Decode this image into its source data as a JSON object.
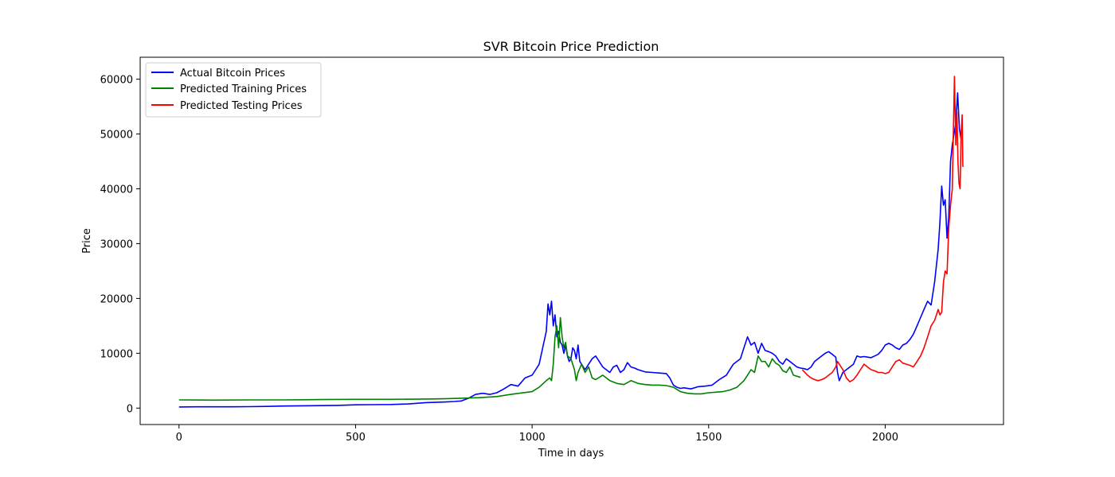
{
  "chart_data": {
    "type": "line",
    "title": "SVR Bitcoin Price Prediction",
    "xlabel": "Time in days",
    "ylabel": "Price",
    "xlim": [
      -110,
      2335
    ],
    "ylim": [
      -3000,
      64000
    ],
    "xticks": [
      0,
      500,
      1000,
      1500,
      2000
    ],
    "yticks": [
      0,
      10000,
      20000,
      30000,
      40000,
      50000,
      60000
    ],
    "grid": false,
    "legend_position": "top-left",
    "series": [
      {
        "name": "Actual Bitcoin Prices",
        "color": "#0000ff",
        "points": [
          [
            0,
            200
          ],
          [
            50,
            230
          ],
          [
            100,
            240
          ],
          [
            150,
            240
          ],
          [
            200,
            260
          ],
          [
            250,
            300
          ],
          [
            300,
            380
          ],
          [
            350,
            420
          ],
          [
            400,
            450
          ],
          [
            450,
            500
          ],
          [
            500,
            600
          ],
          [
            550,
            620
          ],
          [
            600,
            650
          ],
          [
            650,
            750
          ],
          [
            700,
            1000
          ],
          [
            750,
            1100
          ],
          [
            780,
            1200
          ],
          [
            800,
            1300
          ],
          [
            820,
            1800
          ],
          [
            840,
            2500
          ],
          [
            860,
            2700
          ],
          [
            880,
            2500
          ],
          [
            900,
            2800
          ],
          [
            920,
            3500
          ],
          [
            940,
            4300
          ],
          [
            960,
            4000
          ],
          [
            980,
            5500
          ],
          [
            1000,
            6000
          ],
          [
            1010,
            7000
          ],
          [
            1020,
            8000
          ],
          [
            1030,
            11000
          ],
          [
            1040,
            14000
          ],
          [
            1045,
            19000
          ],
          [
            1050,
            17000
          ],
          [
            1055,
            19500
          ],
          [
            1060,
            15000
          ],
          [
            1065,
            17000
          ],
          [
            1070,
            13000
          ],
          [
            1075,
            14000
          ],
          [
            1080,
            12000
          ],
          [
            1085,
            11500
          ],
          [
            1090,
            10000
          ],
          [
            1095,
            11500
          ],
          [
            1100,
            9500
          ],
          [
            1105,
            8500
          ],
          [
            1110,
            9000
          ],
          [
            1115,
            11000
          ],
          [
            1120,
            10500
          ],
          [
            1125,
            9000
          ],
          [
            1130,
            11500
          ],
          [
            1135,
            8500
          ],
          [
            1140,
            8000
          ],
          [
            1150,
            7000
          ],
          [
            1160,
            8000
          ],
          [
            1170,
            9000
          ],
          [
            1180,
            9500
          ],
          [
            1190,
            8500
          ],
          [
            1200,
            7500
          ],
          [
            1210,
            7000
          ],
          [
            1220,
            6500
          ],
          [
            1230,
            7500
          ],
          [
            1240,
            7800
          ],
          [
            1250,
            6500
          ],
          [
            1260,
            7000
          ],
          [
            1270,
            8300
          ],
          [
            1280,
            7500
          ],
          [
            1290,
            7300
          ],
          [
            1300,
            7000
          ],
          [
            1310,
            6800
          ],
          [
            1320,
            6600
          ],
          [
            1340,
            6500
          ],
          [
            1360,
            6400
          ],
          [
            1380,
            6300
          ],
          [
            1390,
            5500
          ],
          [
            1400,
            4200
          ],
          [
            1410,
            3800
          ],
          [
            1420,
            3600
          ],
          [
            1430,
            3700
          ],
          [
            1450,
            3500
          ],
          [
            1470,
            3900
          ],
          [
            1490,
            4000
          ],
          [
            1510,
            4200
          ],
          [
            1530,
            5200
          ],
          [
            1550,
            6000
          ],
          [
            1570,
            8000
          ],
          [
            1590,
            9000
          ],
          [
            1600,
            11000
          ],
          [
            1610,
            13000
          ],
          [
            1620,
            11500
          ],
          [
            1630,
            12000
          ],
          [
            1640,
            10000
          ],
          [
            1650,
            11800
          ],
          [
            1660,
            10500
          ],
          [
            1670,
            10300
          ],
          [
            1680,
            10000
          ],
          [
            1690,
            9500
          ],
          [
            1700,
            8500
          ],
          [
            1710,
            8000
          ],
          [
            1720,
            9000
          ],
          [
            1730,
            8500
          ],
          [
            1740,
            8000
          ],
          [
            1750,
            7500
          ],
          [
            1760,
            7300
          ],
          [
            1770,
            7200
          ],
          [
            1780,
            7000
          ],
          [
            1790,
            7500
          ],
          [
            1800,
            8500
          ],
          [
            1810,
            9000
          ],
          [
            1820,
            9500
          ],
          [
            1830,
            10000
          ],
          [
            1840,
            10300
          ],
          [
            1850,
            9800
          ],
          [
            1860,
            9300
          ],
          [
            1865,
            6500
          ],
          [
            1870,
            5000
          ],
          [
            1880,
            6500
          ],
          [
            1890,
            7000
          ],
          [
            1900,
            7500
          ],
          [
            1910,
            8000
          ],
          [
            1920,
            9500
          ],
          [
            1930,
            9300
          ],
          [
            1940,
            9400
          ],
          [
            1950,
            9300
          ],
          [
            1960,
            9200
          ],
          [
            1970,
            9500
          ],
          [
            1980,
            9800
          ],
          [
            1990,
            10500
          ],
          [
            2000,
            11500
          ],
          [
            2010,
            11800
          ],
          [
            2020,
            11500
          ],
          [
            2030,
            11000
          ],
          [
            2040,
            10700
          ],
          [
            2050,
            11500
          ],
          [
            2060,
            11800
          ],
          [
            2070,
            12500
          ],
          [
            2080,
            13500
          ],
          [
            2090,
            15000
          ],
          [
            2100,
            16500
          ],
          [
            2110,
            18000
          ],
          [
            2120,
            19500
          ],
          [
            2130,
            18800
          ],
          [
            2140,
            23000
          ],
          [
            2150,
            29000
          ],
          [
            2155,
            34000
          ],
          [
            2160,
            40500
          ],
          [
            2165,
            37000
          ],
          [
            2170,
            38000
          ],
          [
            2175,
            31000
          ],
          [
            2180,
            35000
          ],
          [
            2185,
            45000
          ],
          [
            2190,
            48000
          ],
          [
            2195,
            50000
          ],
          [
            2200,
            52000
          ],
          [
            2205,
            57500
          ],
          [
            2210,
            51000
          ],
          [
            2215,
            49000
          ]
        ]
      },
      {
        "name": "Predicted Training Prices",
        "color": "#008000",
        "points": [
          [
            0,
            1500
          ],
          [
            100,
            1450
          ],
          [
            200,
            1500
          ],
          [
            300,
            1500
          ],
          [
            400,
            1550
          ],
          [
            500,
            1600
          ],
          [
            600,
            1600
          ],
          [
            700,
            1650
          ],
          [
            750,
            1700
          ],
          [
            800,
            1800
          ],
          [
            850,
            1900
          ],
          [
            900,
            2100
          ],
          [
            950,
            2600
          ],
          [
            1000,
            3000
          ],
          [
            1020,
            3800
          ],
          [
            1040,
            5000
          ],
          [
            1050,
            5500
          ],
          [
            1055,
            5000
          ],
          [
            1060,
            8000
          ],
          [
            1065,
            13000
          ],
          [
            1070,
            15000
          ],
          [
            1075,
            11000
          ],
          [
            1080,
            16500
          ],
          [
            1085,
            13000
          ],
          [
            1090,
            11000
          ],
          [
            1095,
            12000
          ],
          [
            1100,
            9500
          ],
          [
            1110,
            9000
          ],
          [
            1120,
            7000
          ],
          [
            1125,
            5000
          ],
          [
            1130,
            6500
          ],
          [
            1140,
            8000
          ],
          [
            1150,
            6500
          ],
          [
            1160,
            7500
          ],
          [
            1170,
            5500
          ],
          [
            1180,
            5200
          ],
          [
            1200,
            6000
          ],
          [
            1220,
            5000
          ],
          [
            1240,
            4500
          ],
          [
            1260,
            4300
          ],
          [
            1280,
            5000
          ],
          [
            1300,
            4500
          ],
          [
            1320,
            4300
          ],
          [
            1340,
            4200
          ],
          [
            1360,
            4200
          ],
          [
            1380,
            4100
          ],
          [
            1400,
            3800
          ],
          [
            1420,
            3000
          ],
          [
            1440,
            2700
          ],
          [
            1460,
            2600
          ],
          [
            1480,
            2600
          ],
          [
            1500,
            2800
          ],
          [
            1520,
            2900
          ],
          [
            1540,
            3000
          ],
          [
            1560,
            3300
          ],
          [
            1580,
            3800
          ],
          [
            1600,
            5000
          ],
          [
            1610,
            6000
          ],
          [
            1620,
            7000
          ],
          [
            1630,
            6500
          ],
          [
            1640,
            9500
          ],
          [
            1650,
            8500
          ],
          [
            1660,
            8500
          ],
          [
            1670,
            7500
          ],
          [
            1680,
            9000
          ],
          [
            1690,
            8200
          ],
          [
            1700,
            7800
          ],
          [
            1710,
            6800
          ],
          [
            1720,
            6500
          ],
          [
            1730,
            7500
          ],
          [
            1740,
            6000
          ],
          [
            1750,
            5800
          ],
          [
            1760,
            5600
          ]
        ]
      },
      {
        "name": "Predicted Testing Prices",
        "color": "#ff0000",
        "points": [
          [
            1765,
            7000
          ],
          [
            1780,
            6000
          ],
          [
            1790,
            5500
          ],
          [
            1800,
            5200
          ],
          [
            1810,
            5000
          ],
          [
            1820,
            5200
          ],
          [
            1830,
            5500
          ],
          [
            1840,
            6000
          ],
          [
            1850,
            6500
          ],
          [
            1860,
            7500
          ],
          [
            1865,
            8500
          ],
          [
            1870,
            8000
          ],
          [
            1880,
            7000
          ],
          [
            1890,
            5500
          ],
          [
            1900,
            4800
          ],
          [
            1910,
            5200
          ],
          [
            1920,
            6000
          ],
          [
            1930,
            7000
          ],
          [
            1940,
            8000
          ],
          [
            1950,
            7500
          ],
          [
            1960,
            7000
          ],
          [
            1970,
            6800
          ],
          [
            1980,
            6500
          ],
          [
            1990,
            6500
          ],
          [
            2000,
            6300
          ],
          [
            2010,
            6500
          ],
          [
            2020,
            7500
          ],
          [
            2030,
            8500
          ],
          [
            2040,
            8800
          ],
          [
            2050,
            8200
          ],
          [
            2060,
            8000
          ],
          [
            2070,
            7800
          ],
          [
            2080,
            7500
          ],
          [
            2090,
            8500
          ],
          [
            2100,
            9500
          ],
          [
            2110,
            11000
          ],
          [
            2120,
            13000
          ],
          [
            2130,
            15000
          ],
          [
            2140,
            16000
          ],
          [
            2150,
            18000
          ],
          [
            2155,
            17000
          ],
          [
            2160,
            17500
          ],
          [
            2165,
            23000
          ],
          [
            2170,
            25000
          ],
          [
            2175,
            24500
          ],
          [
            2180,
            33000
          ],
          [
            2185,
            37000
          ],
          [
            2190,
            40000
          ],
          [
            2193,
            50000
          ],
          [
            2196,
            60500
          ],
          [
            2200,
            48000
          ],
          [
            2203,
            54000
          ],
          [
            2206,
            45000
          ],
          [
            2209,
            41000
          ],
          [
            2212,
            40000
          ],
          [
            2215,
            50000
          ],
          [
            2218,
            53500
          ],
          [
            2220,
            44000
          ]
        ]
      }
    ]
  }
}
